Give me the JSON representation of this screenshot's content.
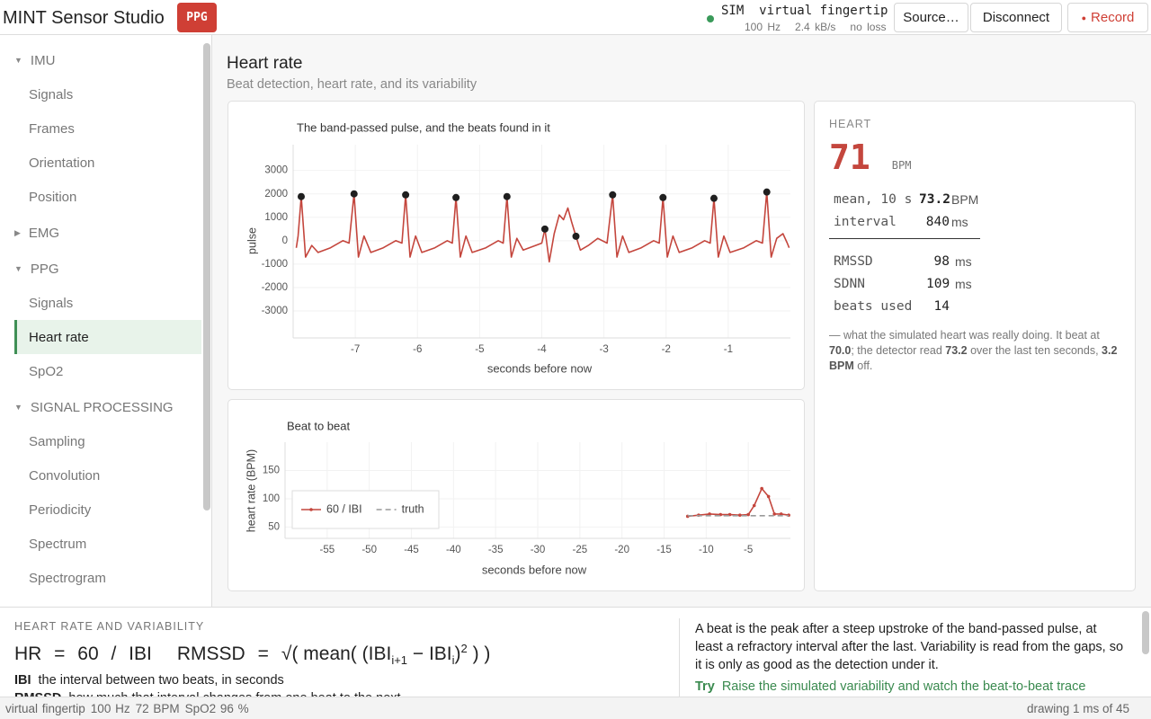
{
  "header": {
    "app": "MINT Sensor Studio",
    "badge": "PPG",
    "source_kind": "SIM",
    "source_name": "virtual fingertip",
    "rate": "100 Hz",
    "throughput": "2.4 kB/s",
    "loss": "no loss",
    "buttons": [
      "Source…",
      "Disconnect",
      "Record"
    ]
  },
  "nav": [
    {
      "group": "IMU",
      "open": true,
      "items": [
        "Signals",
        "Frames",
        "Orientation",
        "Position"
      ]
    },
    {
      "group": "EMG",
      "open": false,
      "items": []
    },
    {
      "group": "PPG",
      "open": true,
      "items": [
        "Signals",
        "Heart rate",
        "SpO2"
      ]
    },
    {
      "group": "SIGNAL PROCESSING",
      "open": true,
      "items": [
        "Sampling",
        "Convolution",
        "Periodicity",
        "Spectrum",
        "Spectrogram"
      ]
    }
  ],
  "active": {
    "group": 2,
    "item": 1
  },
  "page": {
    "title": "Heart rate",
    "subtitle": "Beat detection, heart rate, and its variability"
  },
  "chart_data": [
    {
      "type": "line",
      "title": "The band-passed pulse, and the beats found in it",
      "xlabel": "seconds before now",
      "ylabel": "pulse",
      "xlim": [
        -8,
        0
      ],
      "ylim": [
        -4150,
        4100
      ],
      "xticks": [
        -7,
        -6,
        -5,
        -4,
        -3,
        -2,
        -1
      ],
      "yticks": [
        3000,
        2000,
        1000,
        0,
        -1000,
        -2000,
        -3000
      ],
      "grid": true,
      "series": [
        {
          "color": "#c4463d",
          "mode": "lines",
          "x": [
            -7.95,
            -7.92,
            -7.87,
            -7.8,
            -7.7,
            -7.6,
            -7.4,
            -7.2,
            -7.1,
            -7.02,
            -6.95,
            -6.86,
            -6.75,
            -6.55,
            -6.35,
            -6.25,
            -6.19,
            -6.12,
            -6.03,
            -5.93,
            -5.72,
            -5.52,
            -5.44,
            -5.38,
            -5.31,
            -5.22,
            -5.12,
            -4.9,
            -4.7,
            -4.62,
            -4.56,
            -4.49,
            -4.4,
            -4.3,
            -4.1,
            -4.0,
            -3.95,
            -3.88,
            -3.8,
            -3.72,
            -3.65,
            -3.58,
            -3.52,
            -3.45,
            -3.38,
            -3.25,
            -3.1,
            -2.95,
            -2.86,
            -2.79,
            -2.7,
            -2.6,
            -2.4,
            -2.2,
            -2.11,
            -2.05,
            -1.98,
            -1.89,
            -1.79,
            -1.58,
            -1.38,
            -1.29,
            -1.23,
            -1.16,
            -1.07,
            -0.97,
            -0.75,
            -0.55,
            -0.45,
            -0.38,
            -0.31,
            -0.22,
            -0.12,
            -0.05,
            -0.02
          ],
          "values": [
            -300,
            200,
            1885,
            -700,
            -200,
            -500,
            -300,
            0,
            -100,
            2000,
            -700,
            200,
            -500,
            -300,
            0,
            -100,
            1960,
            -700,
            200,
            -500,
            -300,
            0,
            -100,
            1845,
            -700,
            200,
            -500,
            -300,
            0,
            -100,
            1885,
            -700,
            100,
            -400,
            -200,
            -100,
            500,
            -900,
            300,
            1100,
            900,
            1400,
            800,
            190,
            -400,
            -200,
            100,
            -100,
            1960,
            -700,
            200,
            -500,
            -300,
            0,
            -100,
            1845,
            -700,
            200,
            -500,
            -300,
            0,
            -100,
            1810,
            -700,
            200,
            -500,
            -300,
            0,
            -100,
            2080,
            -700,
            100,
            300,
            -100,
            -300
          ]
        },
        {
          "color": "#1f1f1f",
          "mode": "markers",
          "x": [
            -7.87,
            -7.02,
            -6.19,
            -5.38,
            -4.56,
            -3.95,
            -3.45,
            -2.86,
            -2.05,
            -1.23,
            -0.38
          ],
          "values": [
            1885,
            2000,
            1960,
            1845,
            1885,
            500,
            190,
            1960,
            1845,
            1810,
            2080
          ]
        }
      ]
    },
    {
      "type": "line",
      "title": "Beat to beat",
      "xlabel": "seconds before now",
      "ylabel": "heart rate (BPM)",
      "xlim": [
        -60,
        0
      ],
      "ylim": [
        30,
        200
      ],
      "xticks": [
        -55,
        -50,
        -45,
        -40,
        -35,
        -30,
        -25,
        -20,
        -15,
        -10,
        -5
      ],
      "yticks": [
        150,
        100,
        50
      ],
      "grid": true,
      "legend": "lower left",
      "series": [
        {
          "name": "60 / IBI",
          "color": "#c4463d",
          "mode": "lines+markers",
          "x": [
            -12.2,
            -10.9,
            -9.6,
            -8.3,
            -7.2,
            -6.0,
            -5.0,
            -4.3,
            -3.4,
            -2.6,
            -1.9,
            -1.1,
            -0.2
          ],
          "values": [
            69,
            71,
            73,
            72,
            72,
            71,
            72,
            88,
            118,
            104,
            73,
            73,
            71
          ]
        },
        {
          "name": "truth",
          "color": "#9a9a9a",
          "mode": "lines",
          "dash": true,
          "x": [
            -12.2,
            -0.2
          ],
          "values": [
            70,
            70
          ]
        }
      ]
    }
  ],
  "stats": {
    "heading": "HEART",
    "bpm": "71",
    "bpm_unit": "BPM",
    "rows": [
      {
        "label": "mean, 10 s",
        "value": "73.2",
        "unit": "BPM"
      },
      {
        "label": "interval",
        "value": "840",
        "unit": "ms"
      }
    ],
    "rows2": [
      {
        "label": "RMSSD",
        "value": "98",
        "unit": "ms"
      },
      {
        "label": "SDNN",
        "value": "109",
        "unit": "ms"
      },
      {
        "label": "beats used",
        "value": "14"
      }
    ],
    "note": [
      "— what the simulated heart was really doing. It beat at ",
      "70.0",
      "; the detector read ",
      "73.2",
      " over the last ten seconds, ",
      "3.2 BPM",
      " off."
    ]
  },
  "explainer": {
    "heading": "HEART RATE AND VARIABILITY",
    "hr": "HR = 60 / IBI",
    "rmssd": [
      "RMSSD",
      "=",
      "√( mean( (IBI",
      "i+1",
      " − IBI",
      "i",
      ")",
      "2",
      " ) )"
    ],
    "terms": [
      {
        "term": "IBI",
        "text": "the interval between two beats, in seconds"
      },
      {
        "term": "RMSSD",
        "text": "how much that interval changes from one beat to the next"
      }
    ],
    "paragraph": "A beat is the peak after a steep upstroke of the band-passed pulse, at least a refractory interval after the last. Variability is read from the gaps, so it is only as good as the detection under it.",
    "try": {
      "label": "Try",
      "text": "Raise the simulated variability and watch the beat-to-beat trace"
    }
  },
  "status": {
    "left": [
      "virtual fingertip",
      "100 Hz",
      "72 BPM",
      "SpO2 96 %"
    ],
    "right": "drawing 1 ms of 45"
  }
}
